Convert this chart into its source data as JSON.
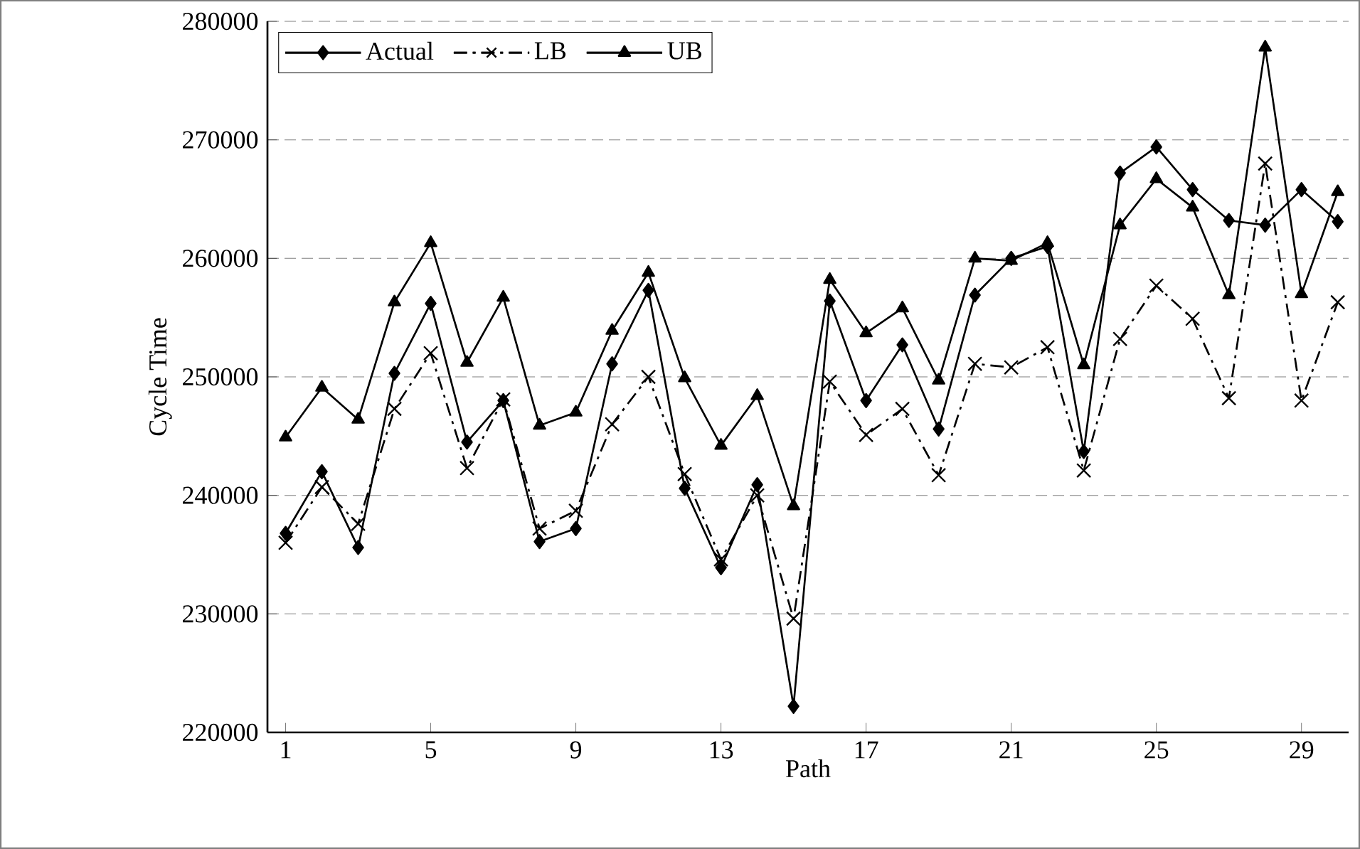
{
  "chart_data": {
    "type": "line",
    "xlabel": "Path",
    "ylabel": "Cycle Time",
    "x": [
      1,
      2,
      3,
      4,
      5,
      6,
      7,
      8,
      9,
      10,
      11,
      12,
      13,
      14,
      15,
      16,
      17,
      18,
      19,
      20,
      21,
      22,
      23,
      24,
      25,
      26,
      27,
      28,
      29,
      30
    ],
    "xlim": [
      0.5,
      30.3
    ],
    "xticks": [
      1,
      5,
      9,
      13,
      17,
      21,
      25,
      29
    ],
    "ylim": [
      220000,
      280000
    ],
    "yticks": [
      220000,
      230000,
      240000,
      250000,
      260000,
      270000,
      280000
    ],
    "grid": "y",
    "legend": "top left",
    "series": [
      {
        "name": "Actual",
        "color": "#000000",
        "marker": "diamond",
        "line_style": "solid",
        "values": [
          236800,
          242000,
          235600,
          250300,
          256200,
          244500,
          248000,
          236100,
          237200,
          251100,
          257300,
          240600,
          233900,
          240900,
          222200,
          256400,
          248000,
          252700,
          245600,
          256900,
          260000,
          261000,
          243700,
          267200,
          269400,
          265800,
          263200,
          262800,
          265800,
          263100
        ]
      },
      {
        "name": "LB",
        "color": "#000000",
        "marker": "cross",
        "line_style": "dashed",
        "values": [
          236000,
          240700,
          237600,
          247300,
          252000,
          242300,
          248100,
          237200,
          238700,
          246000,
          250000,
          241800,
          234600,
          240000,
          229600,
          249600,
          245100,
          247300,
          241700,
          251100,
          250800,
          252500,
          242100,
          253200,
          257700,
          254900,
          248200,
          268000,
          248000,
          256300
        ]
      },
      {
        "name": "UB",
        "color": "#000000",
        "marker": "triangle",
        "line_style": "solid",
        "values": [
          244900,
          249100,
          246400,
          256300,
          261300,
          251200,
          256700,
          245900,
          247000,
          253900,
          258800,
          249900,
          244200,
          248400,
          239100,
          258200,
          253700,
          255800,
          249700,
          260000,
          259800,
          261300,
          251000,
          262800,
          266700,
          264300,
          256900,
          277800,
          257000,
          265600
        ]
      }
    ]
  }
}
